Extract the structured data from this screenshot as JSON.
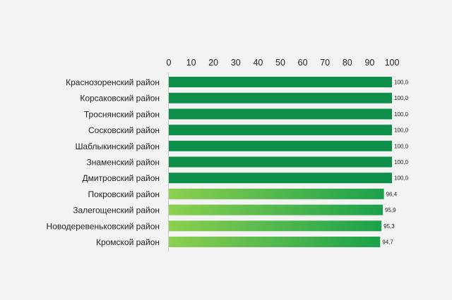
{
  "chart_data": {
    "type": "bar",
    "orientation": "horizontal",
    "title": "",
    "xlabel": "",
    "ylabel": "",
    "xlim": [
      0,
      100
    ],
    "x_ticks": [
      "0",
      "10",
      "20",
      "30",
      "40",
      "50",
      "60",
      "70",
      "80",
      "90",
      "100"
    ],
    "x_axis_position": "top",
    "grid": false,
    "legend": "none",
    "categories": [
      "Краснозоренский район",
      "Корсаковский район",
      "Троснянский район",
      "Сосковский район",
      "Шаблыкинский район",
      "Знаменский район",
      "Дмитровский район",
      "Покровский район",
      "Залегощенский район",
      "Новодеревеньковский район",
      "Кромской район"
    ],
    "values": [
      100.0,
      100.0,
      100.0,
      100.0,
      100.0,
      100.0,
      100.0,
      96.4,
      95.9,
      95.3,
      94.7
    ],
    "value_labels": [
      "100,0",
      "100,0",
      "100,0",
      "100,0",
      "100,0",
      "100,0",
      "100,0",
      "96,4",
      "95,9",
      "95,3",
      "94,7"
    ],
    "colors": {
      "full_bar": "#0d8f4a",
      "gradient_start": "#8cd04f",
      "gradient_end": "#1aa14b",
      "axis_line": "#cccccc",
      "text": "#222222",
      "background": "#f3f3f3"
    }
  }
}
